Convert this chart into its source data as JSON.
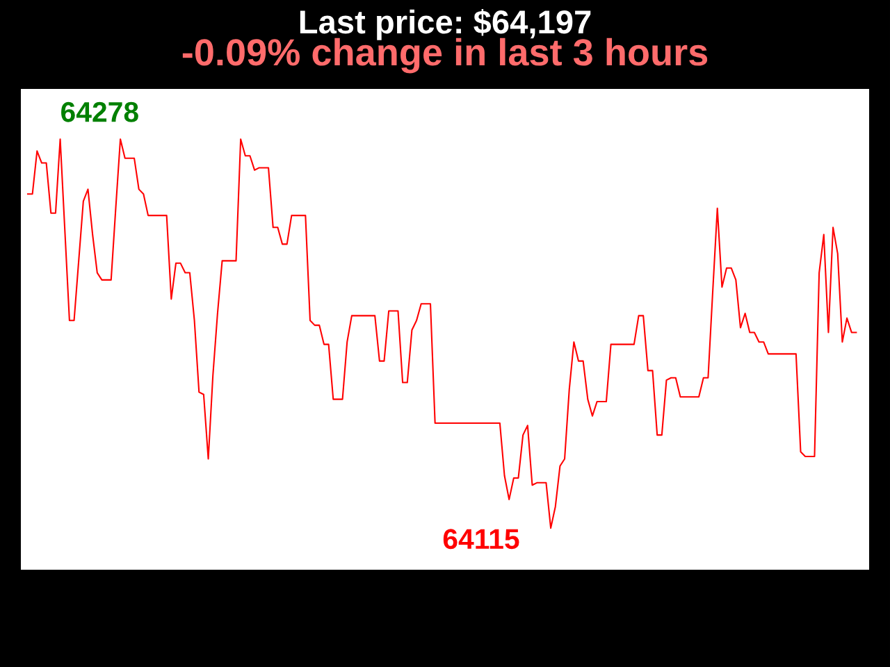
{
  "chart_data": {
    "type": "line",
    "title": "Last price: $64,197",
    "subtitle": "-0.09% change in last 3 hours",
    "categories": [
      null,
      null,
      null,
      null,
      null,
      null,
      null,
      null,
      null,
      null,
      null,
      null,
      null,
      null,
      null,
      null,
      null,
      null,
      null,
      null,
      null,
      null,
      null,
      null,
      null,
      null,
      null,
      null,
      null,
      null,
      null,
      null,
      null,
      null,
      null,
      null,
      null,
      null,
      null,
      null,
      null,
      null,
      null,
      null,
      null,
      null,
      null,
      null,
      null,
      null,
      null,
      null,
      null,
      null,
      null,
      null,
      null,
      null,
      null,
      null,
      null,
      null,
      null,
      null,
      null,
      null,
      null,
      null,
      null,
      null,
      null,
      null,
      null,
      null,
      null,
      null,
      null,
      null,
      null,
      null,
      null,
      null,
      null,
      null,
      null,
      null,
      null,
      null,
      null,
      null,
      null,
      null,
      null,
      null,
      null,
      null,
      null,
      null,
      null,
      null,
      null,
      null,
      null,
      null,
      null,
      null,
      null,
      null,
      null,
      null,
      null,
      null,
      null,
      null,
      null,
      null,
      null,
      null,
      null,
      null,
      null,
      null,
      null,
      null,
      null,
      null,
      null,
      null,
      null,
      null,
      null,
      null,
      null,
      null,
      null,
      null,
      null,
      null,
      null,
      null,
      null,
      null,
      null,
      null,
      null,
      null,
      null,
      null,
      null,
      null,
      null,
      null,
      null,
      null,
      null,
      null,
      null,
      null,
      null,
      null,
      null,
      null,
      null,
      null,
      null,
      null,
      null,
      null,
      null,
      null,
      null,
      null,
      null,
      null,
      null,
      null,
      null,
      null,
      null,
      null
    ],
    "series": [
      {
        "color": "#ff0000",
        "values": [
          64255,
          64255,
          64273,
          64268,
          64268,
          64247,
          64247,
          64278,
          64240,
          64202,
          64202,
          64227,
          64252,
          64257,
          64238,
          64222,
          64219,
          64219,
          64219,
          64249,
          64278,
          64270,
          64270,
          64270,
          64257,
          64255,
          64246,
          64246,
          64246,
          64246,
          64246,
          64211,
          64226,
          64226,
          64222,
          64222,
          64202,
          64172,
          64171,
          64144,
          64179,
          64205,
          64227,
          64227,
          64227,
          64227,
          64278,
          64271,
          64271,
          64265,
          64266,
          64266,
          64266,
          64241,
          64241,
          64234,
          64234,
          64246,
          64246,
          64246,
          64246,
          64202,
          64200,
          64200,
          64192,
          64192,
          64169,
          64169,
          64169,
          64193,
          64204,
          64204,
          64204,
          64204,
          64204,
          64204,
          64185,
          64185,
          64206,
          64206,
          64206,
          64176,
          64176,
          64198,
          64202,
          64209,
          64209,
          64209,
          64159,
          64159,
          64159,
          64159,
          64159,
          64159,
          64159,
          64159,
          64159,
          64159,
          64159,
          64159,
          64159,
          64159,
          64159,
          64137,
          64127,
          64136,
          64136,
          64154,
          64158,
          64133,
          64134,
          64134,
          64134,
          64115,
          64124,
          64141,
          64144,
          64173,
          64193,
          64185,
          64185,
          64169,
          64162,
          64168,
          64168,
          64168,
          64192,
          64192,
          64192,
          64192,
          64192,
          64192,
          64204,
          64204,
          64181,
          64181,
          64154,
          64154,
          64177,
          64178,
          64178,
          64170,
          64170,
          64170,
          64170,
          64170,
          64178,
          64178,
          64214,
          64249,
          64216,
          64224,
          64224,
          64219,
          64199,
          64205,
          64197,
          64197,
          64193,
          64193,
          64188,
          64188,
          64188,
          64188,
          64188,
          64188,
          64188,
          64147,
          64145,
          64145,
          64145,
          64222,
          64238,
          64197,
          64241,
          64230,
          64193,
          64203,
          64197,
          64197
        ],
        "value_labels": [
          null,
          null,
          null,
          null,
          null,
          null,
          null,
          "64278",
          null,
          null,
          null,
          null,
          null,
          null,
          null,
          null,
          null,
          null,
          null,
          null,
          null,
          null,
          null,
          null,
          null,
          null,
          null,
          null,
          null,
          null,
          null,
          null,
          null,
          null,
          null,
          null,
          null,
          null,
          null,
          null,
          null,
          null,
          null,
          null,
          null,
          null,
          null,
          null,
          null,
          null,
          null,
          null,
          null,
          null,
          null,
          null,
          null,
          null,
          null,
          null,
          null,
          null,
          null,
          null,
          null,
          null,
          null,
          null,
          null,
          null,
          null,
          null,
          null,
          null,
          null,
          null,
          null,
          null,
          null,
          null,
          null,
          null,
          null,
          null,
          null,
          null,
          null,
          null,
          null,
          null,
          null,
          null,
          null,
          null,
          null,
          null,
          null,
          null,
          null,
          null,
          null,
          null,
          null,
          null,
          null,
          null,
          null,
          null,
          null,
          null,
          null,
          null,
          null,
          "64115",
          null,
          null,
          null,
          null,
          null,
          null,
          null,
          null,
          null,
          null,
          null,
          null,
          null,
          null,
          null,
          null,
          null,
          null,
          null,
          null,
          null,
          null,
          null,
          null,
          null,
          null,
          null,
          null,
          null,
          null,
          null,
          null,
          null,
          null,
          null,
          null,
          null,
          null,
          null,
          null,
          null,
          null,
          null,
          null,
          null,
          null,
          null,
          null,
          null,
          null,
          null,
          null,
          null,
          null,
          null,
          null,
          null,
          null,
          null,
          null,
          null,
          null,
          null,
          null,
          null,
          null
        ]
      }
    ]
  }
}
